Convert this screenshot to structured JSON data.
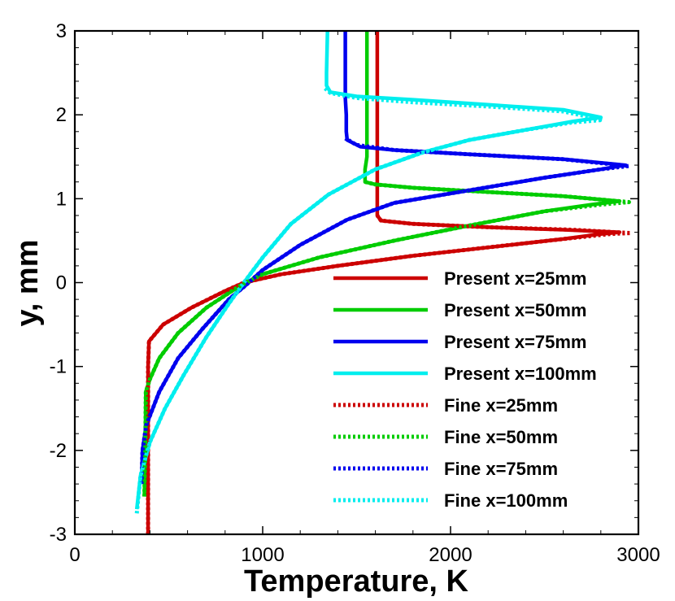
{
  "chart_data": {
    "type": "line",
    "title": "",
    "xlabel": "Temperature, K",
    "ylabel": "y, mm",
    "xlim": [
      0,
      3000
    ],
    "ylim": [
      -3,
      3
    ],
    "x_ticks": [
      0,
      1000,
      2000,
      3000
    ],
    "x_tick_labels": [
      "0",
      "1000",
      "2000",
      "3000"
    ],
    "y_ticks": [
      -3,
      -2,
      -1,
      0,
      1,
      2,
      3
    ],
    "y_tick_labels": [
      "-3",
      "-2",
      "-1",
      "0",
      "1",
      "2",
      "3"
    ],
    "grid": false,
    "legend_position": "right",
    "series": [
      {
        "name": "Present x=25mm",
        "style": "solid",
        "color": "#cc0000",
        "points": [
          [
            390,
            -3
          ],
          [
            390,
            -2
          ],
          [
            390,
            -1
          ],
          [
            395,
            -0.7
          ],
          [
            470,
            -0.5
          ],
          [
            620,
            -0.3
          ],
          [
            800,
            -0.1
          ],
          [
            900,
            0
          ],
          [
            1100,
            0.1
          ],
          [
            1400,
            0.2
          ],
          [
            1800,
            0.32
          ],
          [
            2200,
            0.42
          ],
          [
            2600,
            0.52
          ],
          [
            2800,
            0.58
          ],
          [
            2900,
            0.6
          ],
          [
            2600,
            0.63
          ],
          [
            2200,
            0.66
          ],
          [
            1800,
            0.7
          ],
          [
            1630,
            0.74
          ],
          [
            1610,
            0.8
          ],
          [
            1610,
            1
          ],
          [
            1610,
            2
          ],
          [
            1610,
            3
          ]
        ]
      },
      {
        "name": "Present x=50mm",
        "style": "solid",
        "color": "#00cc00",
        "points": [
          [
            370,
            -2.55
          ],
          [
            375,
            -2
          ],
          [
            378,
            -1.3
          ],
          [
            400,
            -1.15
          ],
          [
            450,
            -0.9
          ],
          [
            550,
            -0.6
          ],
          [
            700,
            -0.3
          ],
          [
            870,
            -0.05
          ],
          [
            1000,
            0.1
          ],
          [
            1300,
            0.3
          ],
          [
            1700,
            0.5
          ],
          [
            2100,
            0.68
          ],
          [
            2500,
            0.85
          ],
          [
            2750,
            0.93
          ],
          [
            2900,
            0.97
          ],
          [
            2600,
            1.03
          ],
          [
            2200,
            1.08
          ],
          [
            1800,
            1.13
          ],
          [
            1600,
            1.17
          ],
          [
            1545,
            1.2
          ],
          [
            1545,
            1.35
          ],
          [
            1555,
            1.5
          ],
          [
            1555,
            2
          ],
          [
            1555,
            3
          ]
        ]
      },
      {
        "name": "Present x=75mm",
        "style": "solid",
        "color": "#0000ee",
        "points": [
          [
            355,
            -2.4
          ],
          [
            360,
            -2
          ],
          [
            380,
            -1.7
          ],
          [
            450,
            -1.3
          ],
          [
            550,
            -0.9
          ],
          [
            680,
            -0.55
          ],
          [
            820,
            -0.2
          ],
          [
            900,
            -0.05
          ],
          [
            1000,
            0.15
          ],
          [
            1200,
            0.45
          ],
          [
            1450,
            0.75
          ],
          [
            1700,
            0.95
          ],
          [
            2100,
            1.1
          ],
          [
            2500,
            1.25
          ],
          [
            2800,
            1.35
          ],
          [
            2930,
            1.4
          ],
          [
            2600,
            1.47
          ],
          [
            2100,
            1.53
          ],
          [
            1700,
            1.58
          ],
          [
            1520,
            1.62
          ],
          [
            1450,
            1.7
          ],
          [
            1445,
            1.8
          ],
          [
            1445,
            2
          ],
          [
            1440,
            2.2
          ],
          [
            1440,
            3
          ]
        ]
      },
      {
        "name": "Present x=100mm",
        "style": "solid",
        "color": "#00eeee",
        "points": [
          [
            330,
            -2.7
          ],
          [
            350,
            -2.3
          ],
          [
            400,
            -1.9
          ],
          [
            480,
            -1.5
          ],
          [
            580,
            -1.1
          ],
          [
            700,
            -0.65
          ],
          [
            820,
            -0.25
          ],
          [
            900,
            0
          ],
          [
            1000,
            0.3
          ],
          [
            1150,
            0.7
          ],
          [
            1350,
            1.05
          ],
          [
            1600,
            1.35
          ],
          [
            1850,
            1.55
          ],
          [
            2100,
            1.7
          ],
          [
            2400,
            1.82
          ],
          [
            2650,
            1.92
          ],
          [
            2800,
            1.97
          ],
          [
            2600,
            2.06
          ],
          [
            2200,
            2.12
          ],
          [
            1800,
            2.18
          ],
          [
            1500,
            2.22
          ],
          [
            1360,
            2.27
          ],
          [
            1340,
            2.35
          ],
          [
            1340,
            2.5
          ],
          [
            1345,
            3
          ]
        ]
      },
      {
        "name": "Fine x=25mm",
        "style": "dotted",
        "color": "#cc0000",
        "points": [
          [
            390,
            -3
          ],
          [
            390,
            -2
          ],
          [
            390,
            -1
          ],
          [
            395,
            -0.7
          ],
          [
            470,
            -0.5
          ],
          [
            620,
            -0.3
          ],
          [
            800,
            -0.1
          ],
          [
            900,
            0
          ],
          [
            1100,
            0.1
          ],
          [
            1400,
            0.2
          ],
          [
            1800,
            0.32
          ],
          [
            2200,
            0.42
          ],
          [
            2600,
            0.52
          ],
          [
            2850,
            0.58
          ],
          [
            2960,
            0.59
          ],
          [
            2650,
            0.63
          ],
          [
            2200,
            0.66
          ],
          [
            1800,
            0.7
          ],
          [
            1630,
            0.74
          ],
          [
            1610,
            0.8
          ]
        ]
      },
      {
        "name": "Fine x=50mm",
        "style": "dotted",
        "color": "#00cc00",
        "points": [
          [
            370,
            -2.55
          ],
          [
            375,
            -2
          ],
          [
            378,
            -1.3
          ],
          [
            400,
            -1.15
          ],
          [
            450,
            -0.9
          ],
          [
            550,
            -0.6
          ],
          [
            700,
            -0.3
          ],
          [
            870,
            -0.05
          ],
          [
            1000,
            0.1
          ],
          [
            1300,
            0.3
          ],
          [
            1700,
            0.5
          ],
          [
            2100,
            0.68
          ],
          [
            2500,
            0.85
          ],
          [
            2800,
            0.93
          ],
          [
            2950,
            0.96
          ],
          [
            2600,
            1.03
          ],
          [
            2200,
            1.08
          ],
          [
            1800,
            1.13
          ],
          [
            1600,
            1.17
          ],
          [
            1545,
            1.2
          ]
        ]
      },
      {
        "name": "Fine x=75mm",
        "style": "dotted",
        "color": "#0000ee",
        "points": [
          [
            355,
            -2.4
          ],
          [
            360,
            -2
          ],
          [
            380,
            -1.7
          ],
          [
            450,
            -1.3
          ],
          [
            550,
            -0.9
          ],
          [
            680,
            -0.55
          ],
          [
            820,
            -0.2
          ],
          [
            900,
            -0.05
          ],
          [
            1000,
            0.15
          ],
          [
            1200,
            0.45
          ],
          [
            1450,
            0.75
          ],
          [
            1700,
            0.95
          ],
          [
            2100,
            1.1
          ],
          [
            2500,
            1.25
          ],
          [
            2800,
            1.35
          ],
          [
            2950,
            1.39
          ],
          [
            2600,
            1.47
          ],
          [
            2100,
            1.53
          ],
          [
            1700,
            1.58
          ],
          [
            1500,
            1.64
          ],
          [
            1440,
            1.72
          ]
        ]
      },
      {
        "name": "Fine x=100mm",
        "style": "dotted",
        "color": "#00eeee",
        "points": [
          [
            330,
            -2.75
          ],
          [
            350,
            -2.3
          ],
          [
            400,
            -1.9
          ],
          [
            480,
            -1.5
          ],
          [
            580,
            -1.1
          ],
          [
            700,
            -0.65
          ],
          [
            820,
            -0.25
          ],
          [
            900,
            0
          ],
          [
            1000,
            0.3
          ],
          [
            1150,
            0.7
          ],
          [
            1350,
            1.05
          ],
          [
            1600,
            1.35
          ],
          [
            1850,
            1.55
          ],
          [
            2100,
            1.7
          ],
          [
            2400,
            1.82
          ],
          [
            2650,
            1.91
          ],
          [
            2810,
            1.94
          ],
          [
            2600,
            2.04
          ],
          [
            2200,
            2.1
          ],
          [
            1800,
            2.15
          ],
          [
            1500,
            2.2
          ],
          [
            1360,
            2.26
          ],
          [
            1330,
            2.32
          ]
        ]
      }
    ]
  }
}
